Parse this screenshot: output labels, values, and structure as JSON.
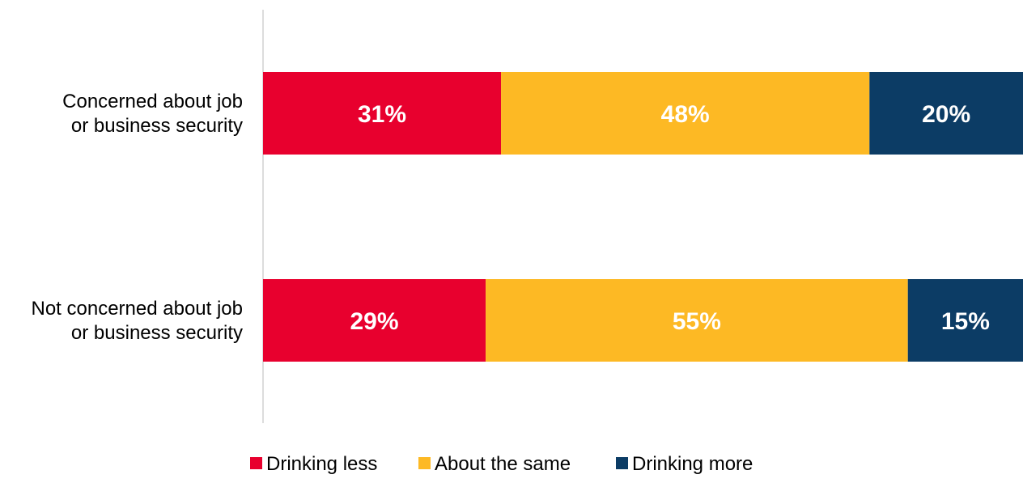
{
  "chart_data": {
    "type": "bar",
    "orientation": "horizontal",
    "stacked": true,
    "categories": [
      [
        "Concerned about job",
        "or business security"
      ],
      [
        "Not concerned about job",
        "or business security"
      ]
    ],
    "series": [
      {
        "name": "Drinking less",
        "color": "#E8002E",
        "values": [
          31,
          29
        ],
        "labels": [
          "31%",
          "29%"
        ]
      },
      {
        "name": "About the same",
        "color": "#FDB924",
        "values": [
          48,
          55
        ],
        "labels": [
          "48%",
          "55%"
        ]
      },
      {
        "name": "Drinking more",
        "color": "#0C3C65",
        "values": [
          20,
          15
        ],
        "labels": [
          "20%",
          "15%"
        ]
      }
    ],
    "title": "",
    "xlabel": "",
    "ylabel": "",
    "xlim": [
      0,
      100
    ],
    "grid": false,
    "legend_position": "bottom"
  }
}
